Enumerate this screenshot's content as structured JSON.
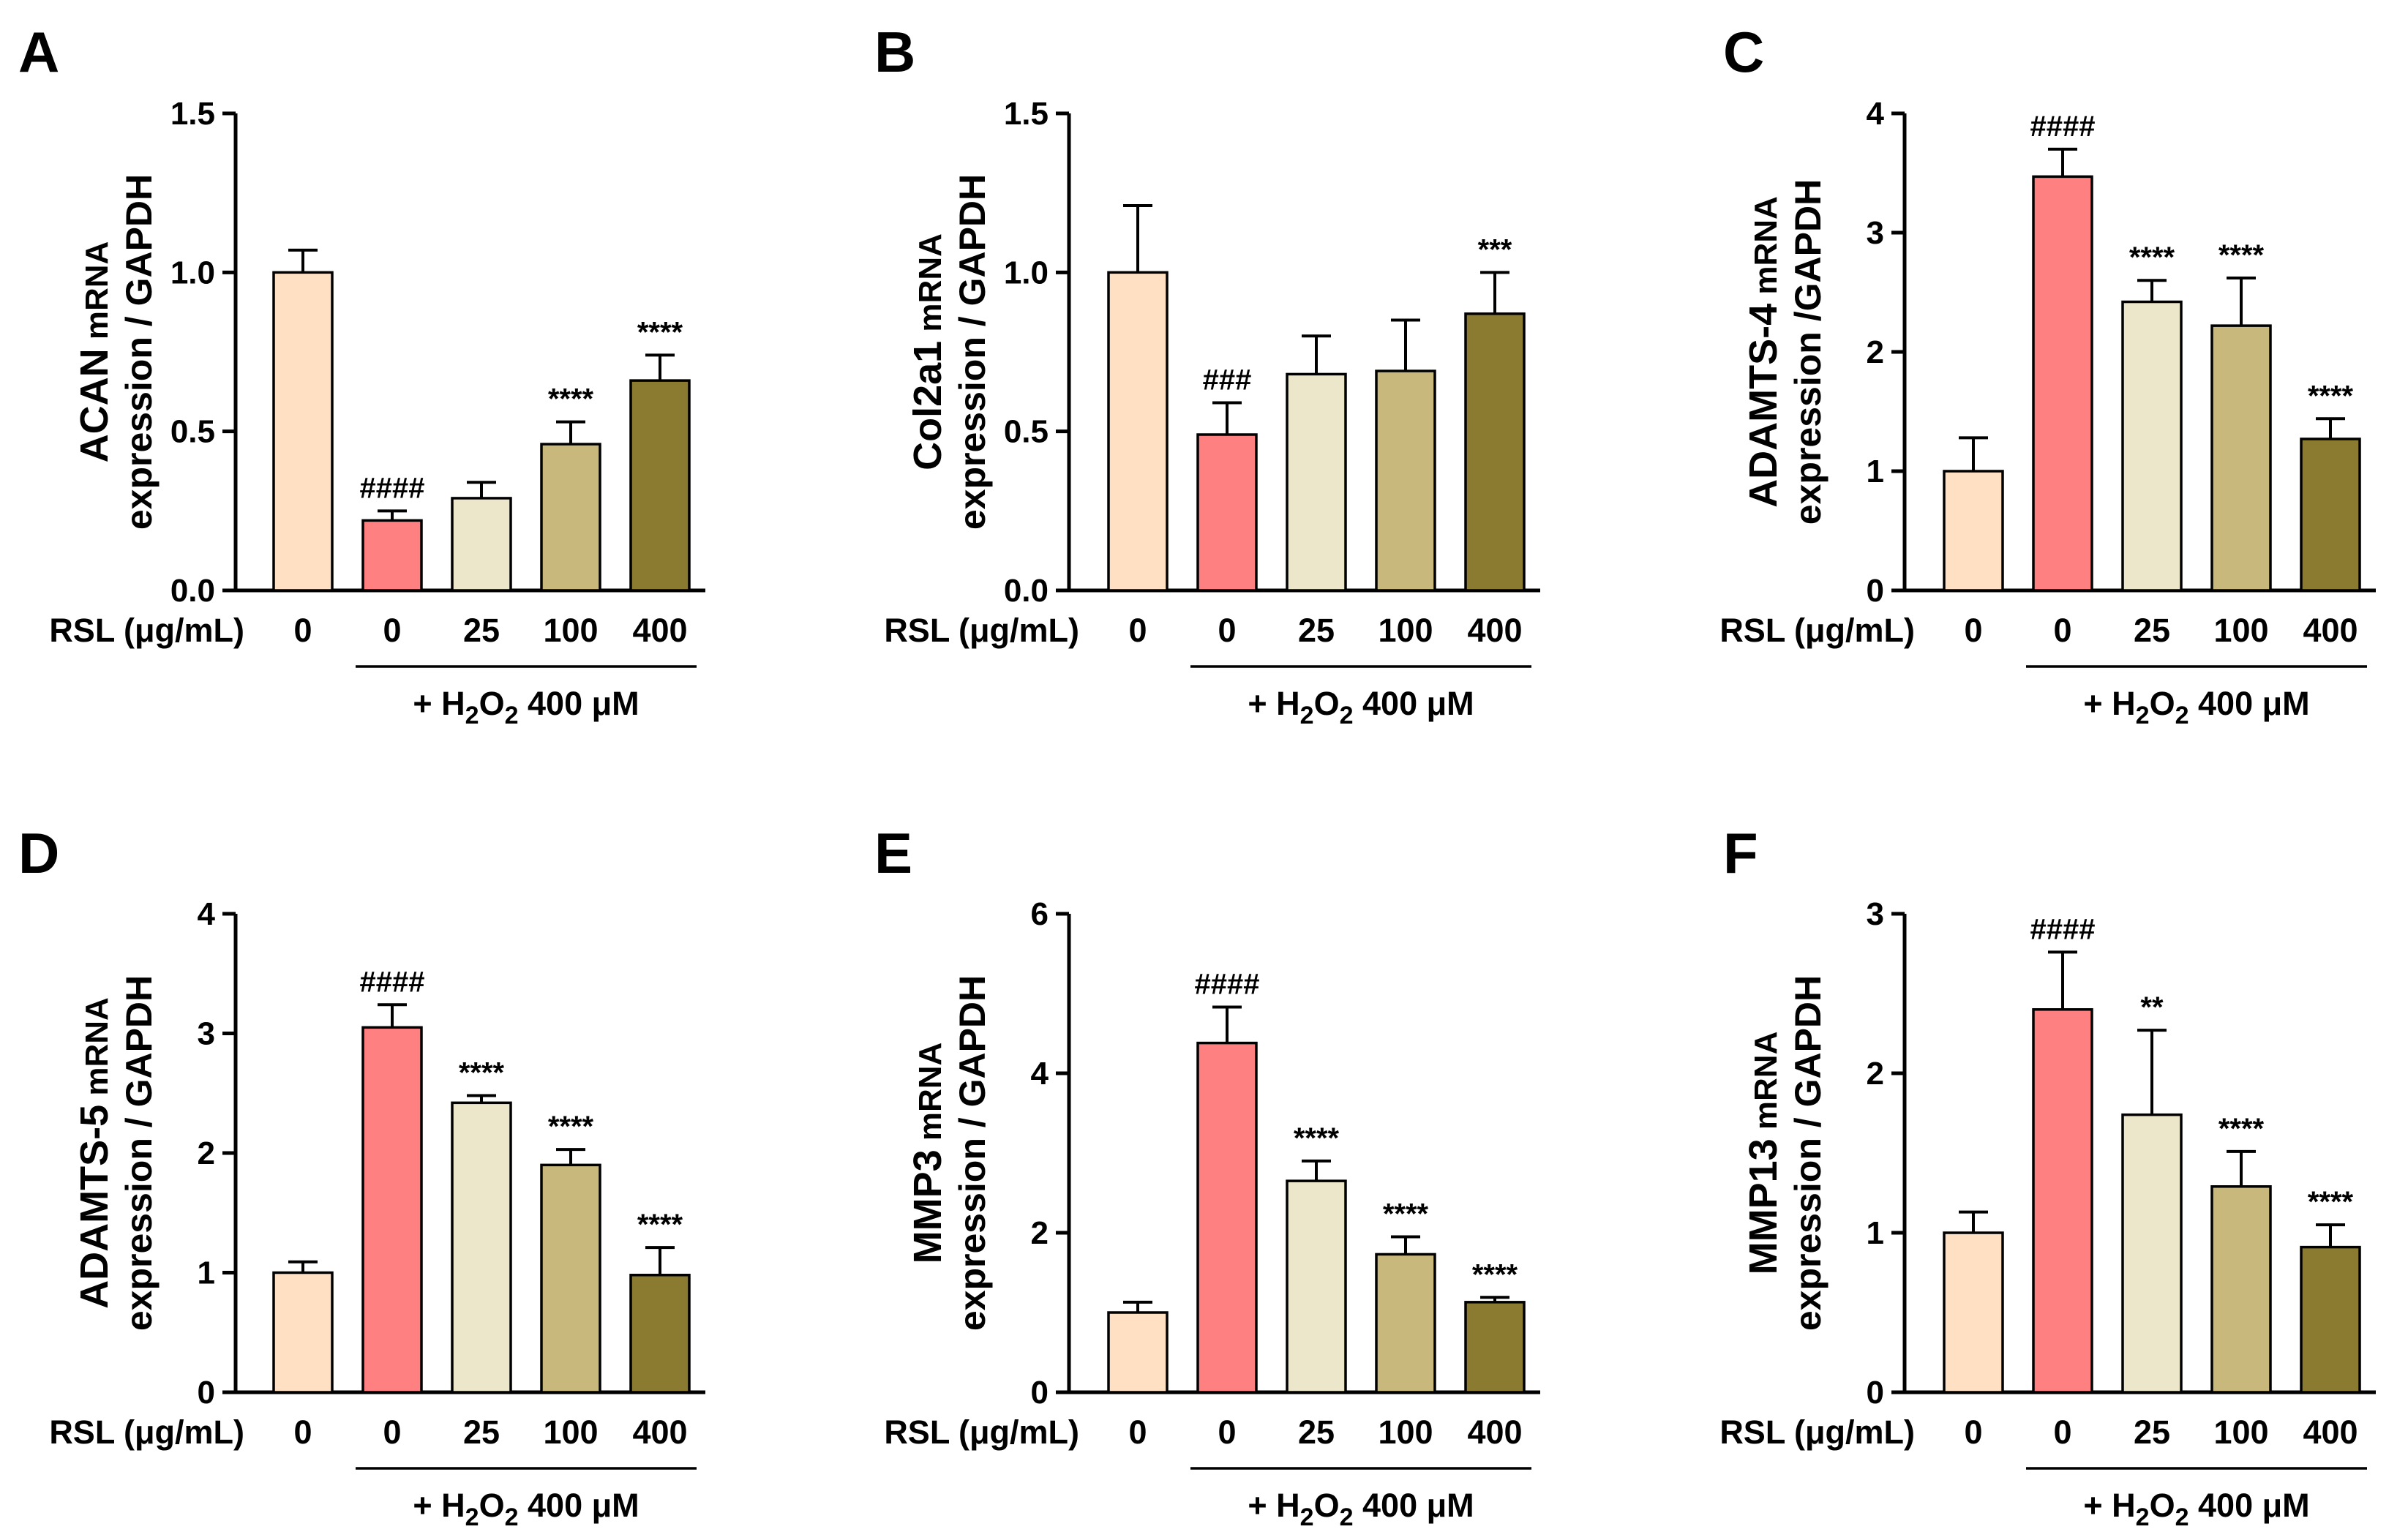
{
  "x_axis_caption": "RSL (μg/mL)",
  "treatment": {
    "prefix": "+ H",
    "sub1": "2",
    "mid": "O",
    "sub2": "2",
    "suffix": " 400 μM"
  },
  "colors": [
    "#FFE0C2",
    "#FF8080",
    "#ECE7CB",
    "#C9B87C",
    "#8B7B31"
  ],
  "categories": [
    "0",
    "0",
    "25",
    "100",
    "400"
  ],
  "chart_data": [
    {
      "type": "bar",
      "panel": "A",
      "ylabel_gene": "ACAN",
      "ylabel_line1_rest": " mRNA",
      "ylabel_line2": "expression / GAPDH",
      "ylim": [
        0,
        1.5
      ],
      "ticks": [
        "0.0",
        "0.5",
        "1.0",
        "1.5"
      ],
      "tick_values": [
        0,
        0.5,
        1.0,
        1.5
      ],
      "categories": [
        "0",
        "0",
        "25",
        "100",
        "400"
      ],
      "values": [
        1.0,
        0.22,
        0.29,
        0.46,
        0.66
      ],
      "errors": [
        0.07,
        0.03,
        0.05,
        0.07,
        0.08
      ],
      "significance": [
        "",
        "####",
        "",
        "****",
        "****"
      ]
    },
    {
      "type": "bar",
      "panel": "B",
      "ylabel_gene": "Col2a1",
      "ylabel_line1_rest": " mRNA",
      "ylabel_line2": "expression / GAPDH",
      "ylim": [
        0,
        1.5
      ],
      "ticks": [
        "0.0",
        "0.5",
        "1.0",
        "1.5"
      ],
      "tick_values": [
        0,
        0.5,
        1.0,
        1.5
      ],
      "categories": [
        "0",
        "0",
        "25",
        "100",
        "400"
      ],
      "values": [
        1.0,
        0.49,
        0.68,
        0.69,
        0.87
      ],
      "errors": [
        0.21,
        0.1,
        0.12,
        0.16,
        0.13
      ],
      "significance": [
        "",
        "###",
        "",
        "",
        "***"
      ]
    },
    {
      "type": "bar",
      "panel": "C",
      "ylabel_gene": "ADAMTS-4",
      "ylabel_line1_rest": " mRNA",
      "ylabel_line2": "expression /GAPDH",
      "ylim": [
        0,
        4
      ],
      "ticks": [
        "0",
        "1",
        "2",
        "3",
        "4"
      ],
      "tick_values": [
        0,
        1,
        2,
        3,
        4
      ],
      "categories": [
        "0",
        "0",
        "25",
        "100",
        "400"
      ],
      "values": [
        1.0,
        3.47,
        2.42,
        2.22,
        1.27
      ],
      "errors": [
        0.28,
        0.23,
        0.18,
        0.4,
        0.17
      ],
      "significance": [
        "",
        "####",
        "****",
        "****",
        "****"
      ]
    },
    {
      "type": "bar",
      "panel": "D",
      "ylabel_gene": "ADAMTS-5",
      "ylabel_line1_rest": " mRNA",
      "ylabel_line2": "expression / GAPDH",
      "ylim": [
        0,
        4
      ],
      "ticks": [
        "0",
        "1",
        "2",
        "3",
        "4"
      ],
      "tick_values": [
        0,
        1,
        2,
        3,
        4
      ],
      "categories": [
        "0",
        "0",
        "25",
        "100",
        "400"
      ],
      "values": [
        1.0,
        3.05,
        2.42,
        1.9,
        0.98
      ],
      "errors": [
        0.09,
        0.19,
        0.06,
        0.13,
        0.23
      ],
      "significance": [
        "",
        "####",
        "****",
        "****",
        "****"
      ]
    },
    {
      "type": "bar",
      "panel": "E",
      "ylabel_gene": "MMP3",
      "ylabel_line1_rest": " mRNA",
      "ylabel_line2": "expression / GAPDH",
      "ylim": [
        0,
        6
      ],
      "ticks": [
        "0",
        "2",
        "4",
        "6"
      ],
      "tick_values": [
        0,
        2,
        4,
        6
      ],
      "categories": [
        "0",
        "0",
        "25",
        "100",
        "400"
      ],
      "values": [
        1.0,
        4.38,
        2.65,
        1.73,
        1.13
      ],
      "errors": [
        0.13,
        0.45,
        0.25,
        0.22,
        0.06
      ],
      "significance": [
        "",
        "####",
        "****",
        "****",
        "****"
      ]
    },
    {
      "type": "bar",
      "panel": "F",
      "ylabel_gene": "MMP13",
      "ylabel_line1_rest": " mRNA",
      "ylabel_line2": "expression / GAPDH",
      "ylim": [
        0,
        3
      ],
      "ticks": [
        "0",
        "1",
        "2",
        "3"
      ],
      "tick_values": [
        0,
        1,
        2,
        3
      ],
      "categories": [
        "0",
        "0",
        "25",
        "100",
        "400"
      ],
      "values": [
        1.0,
        2.4,
        1.74,
        1.29,
        0.91
      ],
      "errors": [
        0.13,
        0.36,
        0.53,
        0.22,
        0.14
      ],
      "significance": [
        "",
        "####",
        "**",
        "****",
        "****"
      ]
    }
  ]
}
